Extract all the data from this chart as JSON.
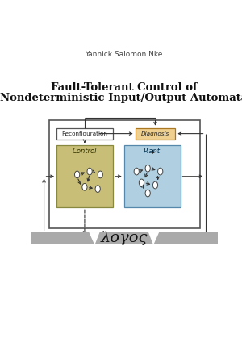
{
  "bg_color": "#ffffff",
  "author": "Yannick Salomon Nke",
  "title_line1": "Fault-Tolerant Control of",
  "title_line2": "Nondeterministic Input/Output Automata",
  "logo_text": "λογος",
  "logo_bar_color": "#aaaaaa",
  "outer_box_color": "#555555",
  "reconfig_box_color": "#ffffff",
  "reconfig_border_color": "#555555",
  "diagnosis_box_color": "#f0d090",
  "diagnosis_border_color": "#aa7722",
  "control_box_color": "#c8be78",
  "control_border_color": "#888840",
  "plant_box_color": "#b0cfe0",
  "plant_border_color": "#5588aa",
  "node_color": "#ffffff",
  "node_border": "#444444",
  "arrow_color": "#333333"
}
